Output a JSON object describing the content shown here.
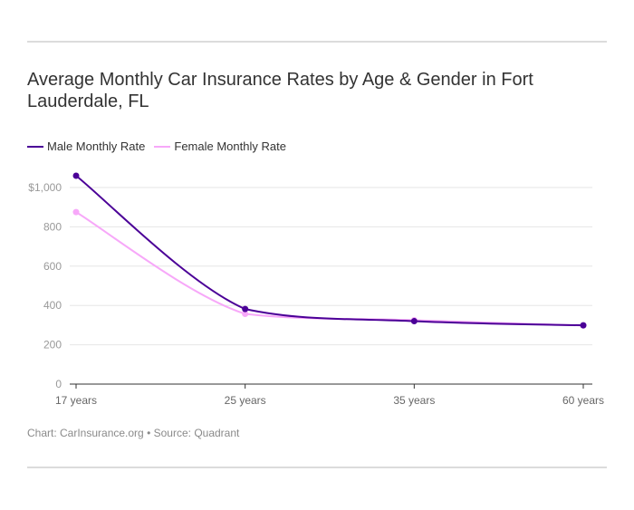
{
  "colors": {
    "male": "#4b0097",
    "female": "#f7a8f9",
    "grid": "#e6e6e6",
    "axis": "#333333",
    "tick_text": "#999999"
  },
  "footer": {
    "chart_credit": "Chart: CarInsurance.org",
    "separator": "•",
    "source": "Source: Quadrant"
  },
  "chart_data": {
    "type": "line",
    "title": "Average Monthly Car Insurance Rates by Age & Gender in Fort Lauderdale, FL",
    "categories": [
      "17 years",
      "25 years",
      "35 years",
      "60 years"
    ],
    "series": [
      {
        "name": "Male Monthly Rate",
        "values": [
          1060,
          382,
          320,
          299
        ]
      },
      {
        "name": "Female Monthly Rate",
        "values": [
          875,
          357,
          325,
          298
        ]
      }
    ],
    "y_ticks": [
      {
        "value": 0,
        "label": "0"
      },
      {
        "value": 200,
        "label": "200"
      },
      {
        "value": 400,
        "label": "400"
      },
      {
        "value": 600,
        "label": "600"
      },
      {
        "value": 800,
        "label": "800"
      },
      {
        "value": 1000,
        "label": "$1,000"
      }
    ],
    "ylim": [
      0,
      1000
    ],
    "grid": true,
    "legend": "top-left",
    "curve": "smooth"
  }
}
